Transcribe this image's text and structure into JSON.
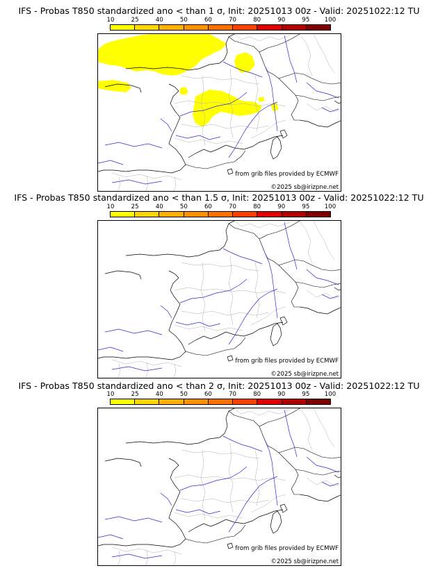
{
  "colorbar": {
    "ticks": [
      "10",
      "25",
      "40",
      "50",
      "60",
      "70",
      "80",
      "90",
      "95",
      "100"
    ],
    "colors": [
      "#ffff00",
      "#ffd700",
      "#ffb000",
      "#ff9000",
      "#ff7000",
      "#ff4000",
      "#e00000",
      "#b00000",
      "#800000",
      "#500000"
    ]
  },
  "panels": [
    {
      "title": "IFS - Probas T850  standardized ano < than 1 σ, Init: 20251013 00z - Valid: 20251022:12 TU",
      "credit_source": "from grib files provided by ECMWF",
      "credit_copyright": "©2025 sb@irizpne.net",
      "has_probability_area": true,
      "probability_color": "#ffff00"
    },
    {
      "title": "IFS - Probas T850  standardized ano < than 1.5 σ, Init: 20251013 00z - Valid: 20251022:12 TU",
      "credit_source": "from grib files provided by ECMWF",
      "credit_copyright": "©2025 sb@irizpne.net",
      "has_probability_area": false
    },
    {
      "title": "IFS - Probas T850  standardized ano < than 2 σ, Init: 20251013 00z - Valid: 20251022:12 TU",
      "credit_source": "from grib files provided by ECMWF",
      "credit_copyright": "©2025 sb@irizpne.net",
      "has_probability_area": false
    }
  ]
}
